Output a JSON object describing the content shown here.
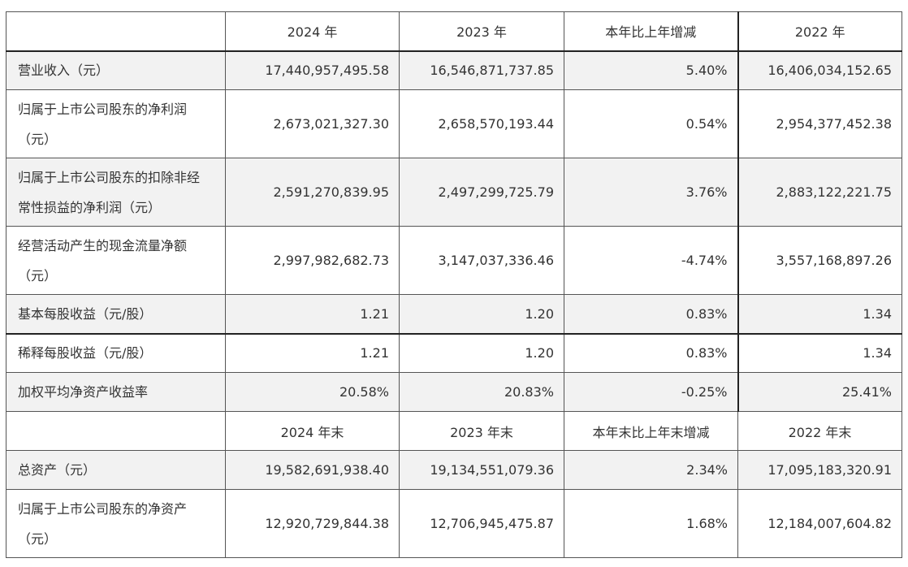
{
  "header_annual": {
    "empty": "",
    "col_2024": "2024 年",
    "col_2023": "2023 年",
    "col_change": "本年比上年增减",
    "col_2022": "2022 年"
  },
  "rows_annual": [
    {
      "label": "营业收入（元）",
      "v2024": "17,440,957,495.58",
      "v2023": "16,546,871,737.85",
      "change": "5.40%",
      "v2022": "16,406,034,152.65"
    },
    {
      "label_line1": "归属于上市公司股东的净利润",
      "label_line2": "（元）",
      "v2024": "2,673,021,327.30",
      "v2023": "2,658,570,193.44",
      "change": "0.54%",
      "v2022": "2,954,377,452.38"
    },
    {
      "label_line1": "归属于上市公司股东的扣除非经",
      "label_line2": "常性损益的净利润（元）",
      "v2024": "2,591,270,839.95",
      "v2023": "2,497,299,725.79",
      "change": "3.76%",
      "v2022": "2,883,122,221.75"
    },
    {
      "label_line1": "经营活动产生的现金流量净额",
      "label_line2": "（元）",
      "v2024": "2,997,982,682.73",
      "v2023": "3,147,037,336.46",
      "change": "-4.74%",
      "v2022": "3,557,168,897.26"
    },
    {
      "label": "基本每股收益（元/股）",
      "v2024": "1.21",
      "v2023": "1.20",
      "change": "0.83%",
      "v2022": "1.34"
    },
    {
      "label": "稀释每股收益（元/股）",
      "v2024": "1.21",
      "v2023": "1.20",
      "change": "0.83%",
      "v2022": "1.34"
    },
    {
      "label": "加权平均净资产收益率",
      "v2024": "20.58%",
      "v2023": "20.83%",
      "change": "-0.25%",
      "v2022": "25.41%"
    }
  ],
  "header_yearend": {
    "empty": "",
    "col_2024": "2024 年末",
    "col_2023": "2023 年末",
    "col_change": "本年末比上年末增减",
    "col_2022": "2022 年末"
  },
  "rows_yearend": [
    {
      "label": "总资产（元）",
      "v2024": "19,582,691,938.40",
      "v2023": "19,134,551,079.36",
      "change": "2.34%",
      "v2022": "17,095,183,320.91"
    },
    {
      "label_line1": "归属于上市公司股东的净资产",
      "label_line2": "（元）",
      "v2024": "12,920,729,844.38",
      "v2023": "12,706,945,475.87",
      "change": "1.68%",
      "v2022": "12,184,007,604.82"
    }
  ]
}
